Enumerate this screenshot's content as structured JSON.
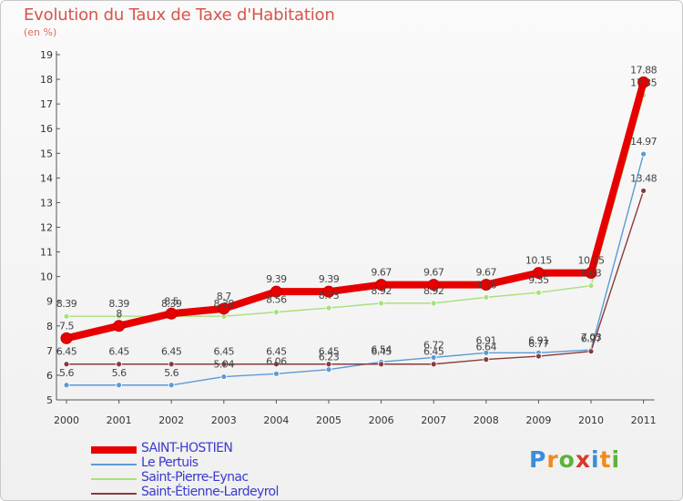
{
  "header": {
    "title": "Evolution du Taux de Taxe d'Habitation",
    "subtitle": "(en %)"
  },
  "logo": {
    "letters": [
      "P",
      "r",
      "o",
      "x",
      "i",
      "t",
      "i"
    ],
    "colors": [
      "#3a8ed8",
      "#f08a1c",
      "#5cb338",
      "#d63a2a",
      "#3a8ed8",
      "#f08a1c",
      "#5cb338"
    ]
  },
  "chart_data": {
    "type": "line",
    "x": [
      "2000",
      "2001",
      "2002",
      "2003",
      "2004",
      "2005",
      "2006",
      "2007",
      "2008",
      "2009",
      "2010",
      "2011"
    ],
    "ylim": [
      5,
      19
    ],
    "yticks": [
      "5",
      "6",
      "7",
      "8",
      "9",
      "10",
      "11",
      "12",
      "13",
      "14",
      "15",
      "16",
      "17",
      "18",
      "19"
    ],
    "grid": false,
    "legend_position": "bottom-left",
    "series": [
      {
        "name": "SAINT-HOSTIEN",
        "color": "#e80000",
        "values": [
          7.5,
          8,
          8.5,
          8.7,
          9.39,
          9.39,
          9.67,
          9.67,
          9.67,
          10.15,
          10.15,
          17.88
        ],
        "labels": [
          "7.5",
          "8",
          "8.5",
          "8.7",
          "9.39",
          "9.39",
          "9.67",
          "9.67",
          "9.67",
          "10.15",
          "10.15",
          "17.88"
        ]
      },
      {
        "name": "Le Pertuis",
        "color": "#5b9bd5",
        "values": [
          5.6,
          5.6,
          5.6,
          5.94,
          6.06,
          6.23,
          6.54,
          6.72,
          6.91,
          6.91,
          7.03,
          14.97
        ],
        "labels": [
          "5.6",
          "5.6",
          "5.6",
          "5.94",
          "6.06",
          "6.23",
          "6.54",
          "6.72",
          "6.91",
          "6.91",
          "7.03",
          "14.97"
        ]
      },
      {
        "name": "Saint-Pierre-Eynac",
        "color": "#a8e07c",
        "values": [
          8.39,
          8.39,
          8.39,
          8.39,
          8.56,
          8.73,
          8.92,
          8.92,
          9.16,
          9.35,
          9.63,
          17.35
        ],
        "labels": [
          "8.39",
          "8.39",
          "8.39",
          "8.39",
          "8.56",
          "8.73",
          "8.92",
          "8.92",
          "9.16",
          "9.35",
          "9.63",
          "17.35"
        ]
      },
      {
        "name": "Saint-Étienne-Lardeyrol",
        "color": "#8b3a3a",
        "values": [
          6.45,
          6.45,
          6.45,
          6.45,
          6.45,
          6.45,
          6.45,
          6.45,
          6.64,
          6.77,
          6.97,
          13.48
        ],
        "labels": [
          "6.45",
          "6.45",
          "6.45",
          "6.45",
          "6.45",
          "6.45",
          "6.45",
          "6.45",
          "6.64",
          "6.77",
          "6.97",
          "13.48"
        ]
      }
    ]
  }
}
